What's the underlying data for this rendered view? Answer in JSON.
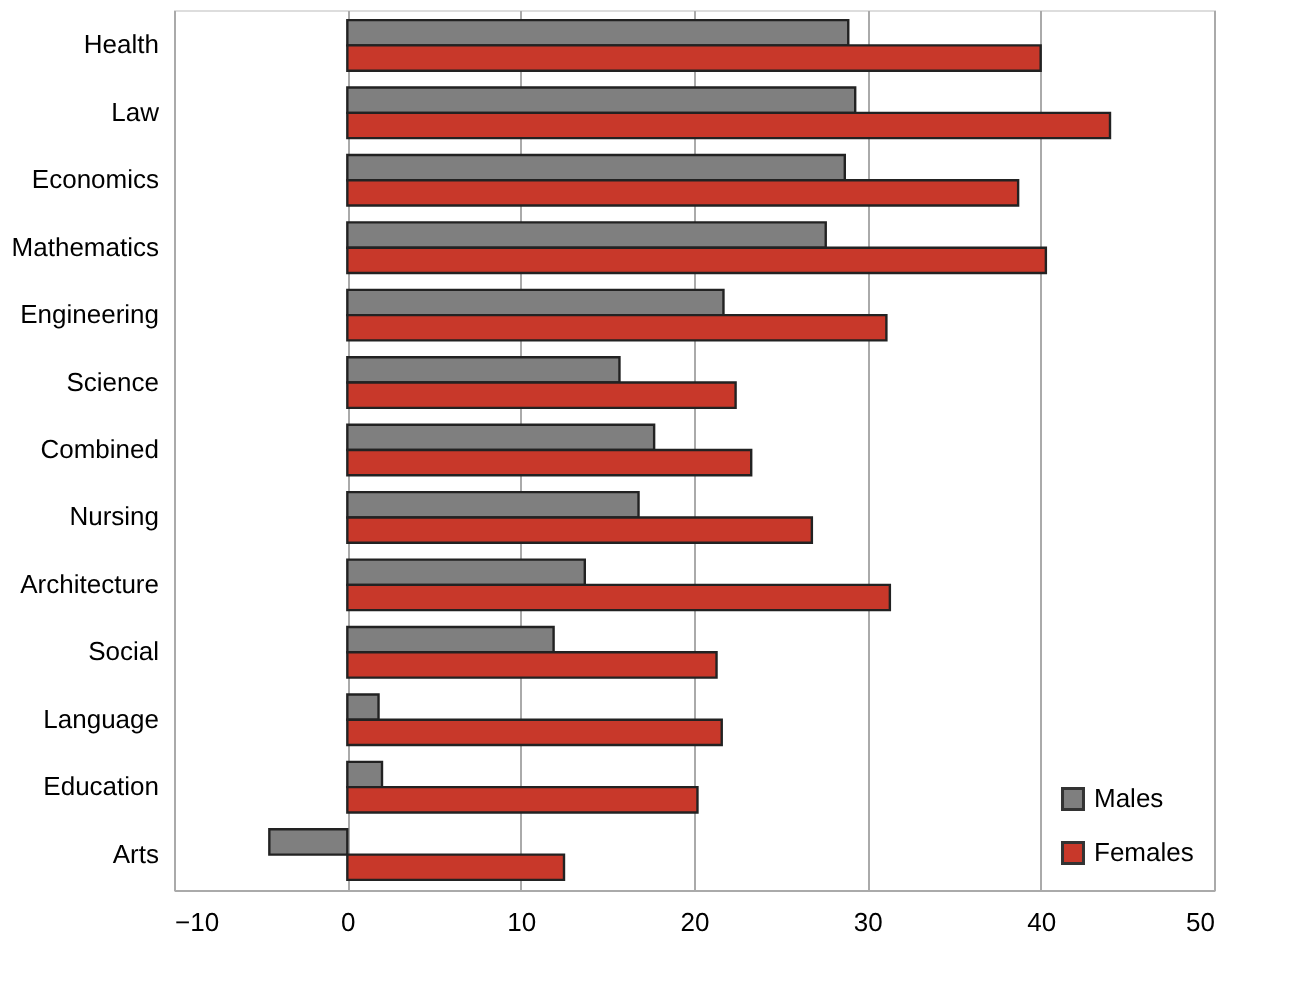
{
  "chart_data": {
    "type": "bar",
    "orientation": "horizontal",
    "categories": [
      "Health",
      "Law",
      "Economics",
      "Mathematics",
      "Engineering",
      "Science",
      "Combined",
      "Nursing",
      "Architecture",
      "Social",
      "Language",
      "Education",
      "Arts"
    ],
    "series": [
      {
        "name": "Males",
        "color": "#7f7f7f",
        "values": [
          28.9,
          29.3,
          28.7,
          27.6,
          21.7,
          15.7,
          17.7,
          16.8,
          13.7,
          11.9,
          1.8,
          2.0,
          -4.5
        ]
      },
      {
        "name": "Females",
        "color": "#c8382a",
        "values": [
          40.0,
          44.0,
          38.7,
          40.3,
          31.1,
          22.4,
          23.3,
          26.8,
          31.3,
          21.3,
          21.6,
          20.2,
          12.5
        ]
      }
    ],
    "xlim": [
      -10,
      50
    ],
    "xticks": [
      -10,
      0,
      10,
      20,
      30,
      40,
      50
    ],
    "grid": "x",
    "legend": "bottom right"
  }
}
